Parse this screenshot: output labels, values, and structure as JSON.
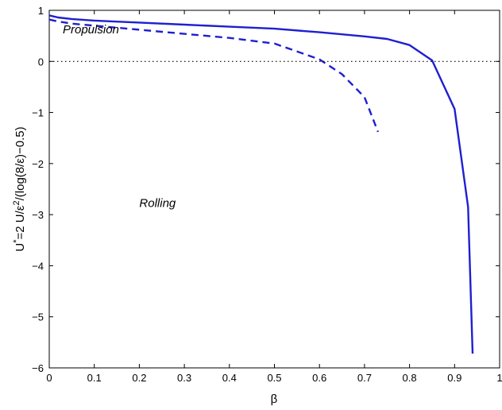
{
  "chart_data": {
    "type": "line",
    "title": "",
    "xlabel": "β",
    "ylabel_parts": [
      "U",
      "*",
      "=2 U/ε",
      "2",
      "/(log(8/ε)−0.5)"
    ],
    "xlim": [
      0,
      1
    ],
    "ylim": [
      -6,
      1
    ],
    "xticks": [
      0,
      0.1,
      0.2,
      0.3,
      0.4,
      0.5,
      0.6,
      0.7,
      0.8,
      0.9,
      1
    ],
    "xtick_labels": [
      "0",
      "0.1",
      "0.2",
      "0.3",
      "0.4",
      "0.5",
      "0.6",
      "0.7",
      "0.8",
      "0.9",
      "1"
    ],
    "yticks": [
      1,
      0,
      -1,
      -2,
      -3,
      -4,
      -5,
      -6
    ],
    "ytick_labels": [
      "1",
      "0",
      "−1",
      "−2",
      "−3",
      "−4",
      "−5",
      "−6"
    ],
    "grid": false,
    "legend": "none",
    "series": [
      {
        "style": "solid",
        "color": "#1f1fd1",
        "x": [
          0,
          0.02,
          0.05,
          0.1,
          0.2,
          0.3,
          0.4,
          0.5,
          0.6,
          0.7,
          0.75,
          0.8,
          0.85,
          0.9,
          0.93,
          0.94
        ],
        "y": [
          0.9,
          0.86,
          0.83,
          0.8,
          0.76,
          0.72,
          0.68,
          0.64,
          0.57,
          0.49,
          0.44,
          0.32,
          0.02,
          -0.93,
          -2.85,
          -5.72
        ]
      },
      {
        "style": "dashed",
        "color": "#1f1fd1",
        "x": [
          0,
          0.02,
          0.05,
          0.1,
          0.2,
          0.3,
          0.4,
          0.5,
          0.6,
          0.65,
          0.7,
          0.73
        ],
        "y": [
          0.82,
          0.78,
          0.74,
          0.7,
          0.62,
          0.54,
          0.46,
          0.35,
          0.04,
          -0.25,
          -0.7,
          -1.38
        ]
      },
      {
        "style": "dotted",
        "color": "#000000",
        "x": [
          0,
          1
        ],
        "y": [
          0,
          0
        ]
      }
    ],
    "annotations": [
      {
        "text": "Propulsion",
        "x": 0.03,
        "y": 0.55
      },
      {
        "text": "Rolling",
        "x": 0.2,
        "y": -2.85
      }
    ]
  }
}
